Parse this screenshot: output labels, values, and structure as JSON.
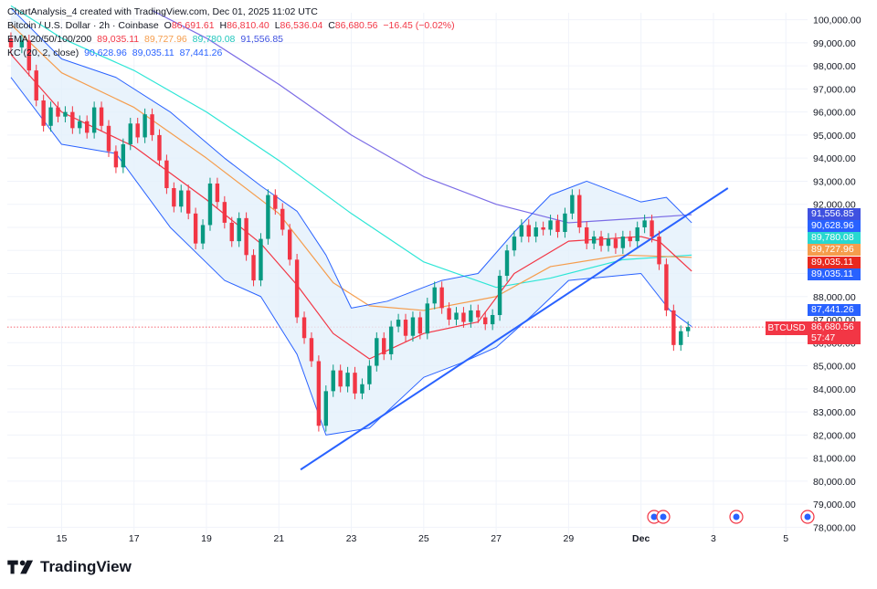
{
  "header": {
    "watermark": "ChartAnalysis_4 created with TradingView.com, Dec 01, 2025 11:02 UTC",
    "symbol_line": {
      "name": "Bitcoin / U.S. Dollar · 2h · Coinbase",
      "o_label": "O",
      "o_value": "86,691.61",
      "h_label": "H",
      "h_value": "86,810.40",
      "l_label": "L",
      "l_value": "86,536.04",
      "c_label": "C",
      "c_value": "86,680.56",
      "change": "−16.45 (−0.02%)"
    },
    "ema_line": {
      "label": "EMA 20/50/100/200",
      "values": [
        "89,035.11",
        "89,727.96",
        "89,780.08",
        "91,556.85"
      ]
    },
    "kc_line": {
      "label": "KC (20, 2, close)",
      "values": [
        "90,628.96",
        "89,035.11",
        "87,441.26"
      ]
    }
  },
  "footer": {
    "brand": "TradingView"
  },
  "colors": {
    "up": "#089981",
    "down": "#f23645",
    "ema20": "#f23645",
    "ema50": "#f59d4d",
    "ema100": "#2ee6d6",
    "ema200": "#7b6ce6",
    "kc_line": "#2962ff",
    "kc_fill": "#e3f0fb",
    "trendline": "#2962ff",
    "text": "#131722"
  },
  "price_labels": [
    {
      "value": "91,556.85",
      "color": "#3f51e0"
    },
    {
      "value": "90,628.96",
      "color": "#2962ff"
    },
    {
      "value": "89,780.08",
      "color": "#28d8d0"
    },
    {
      "value": "89,727.96",
      "color": "#f59d4d"
    },
    {
      "value": "89,035.11",
      "color": "#e8281f"
    },
    {
      "value": "89,035.11",
      "color": "#2962ff"
    },
    {
      "value": "87,441.26",
      "color": "#2962ff"
    },
    {
      "value": "86,680.56",
      "color": "#f23645"
    },
    {
      "value": "57:47",
      "color": "#f23645"
    }
  ],
  "symbol_tag": "BTCUSD",
  "chart_data": {
    "type": "candlestick",
    "title": "Bitcoin / U.S. Dollar · 2h · Coinbase",
    "x_ticks": [
      "15",
      "17",
      "19",
      "21",
      "23",
      "25",
      "27",
      "29",
      "Dec",
      "3",
      "5"
    ],
    "y_ticks": [
      78000,
      79000,
      80000,
      81000,
      82000,
      83000,
      84000,
      85000,
      86000,
      87000,
      88000,
      89000,
      90000,
      91000,
      92000,
      93000,
      94000,
      95000,
      96000,
      97000,
      98000,
      99000,
      100000
    ],
    "y_tick_labels": [
      "78,000.00",
      "79,000.00",
      "80,000.00",
      "81,000.00",
      "82,000.00",
      "83,000.00",
      "84,000.00",
      "85,000.00",
      "86,000.00",
      "87,000.00",
      "88,000.00",
      "89,000.00",
      "90,000.00",
      "91,000.00",
      "92,000.00",
      "93,000.00",
      "94,000.00",
      "95,000.00",
      "96,000.00",
      "97,000.00",
      "98,000.00",
      "99,000.00",
      "100,000.00"
    ],
    "ylim": [
      77700,
      100300
    ],
    "xlim_days": [
      13.5,
      35.6
    ],
    "candles_close": [
      {
        "day": 13.6,
        "o": 99200,
        "c": 98800
      },
      {
        "day": 13.9,
        "o": 98800,
        "c": 99100
      },
      {
        "day": 14.1,
        "o": 99100,
        "c": 97800
      },
      {
        "day": 14.3,
        "o": 97800,
        "c": 96500
      },
      {
        "day": 14.5,
        "o": 96500,
        "c": 95400
      },
      {
        "day": 14.7,
        "o": 95400,
        "c": 96200
      },
      {
        "day": 14.9,
        "o": 96200,
        "c": 95800
      },
      {
        "day": 15.1,
        "o": 95800,
        "c": 96000
      },
      {
        "day": 15.3,
        "o": 96000,
        "c": 95300
      },
      {
        "day": 15.5,
        "o": 95300,
        "c": 95600
      },
      {
        "day": 15.7,
        "o": 95600,
        "c": 95100
      },
      {
        "day": 15.9,
        "o": 95100,
        "c": 96200
      },
      {
        "day": 16.1,
        "o": 96200,
        "c": 95400
      },
      {
        "day": 16.3,
        "o": 95400,
        "c": 94300
      },
      {
        "day": 16.5,
        "o": 94300,
        "c": 93600
      },
      {
        "day": 16.7,
        "o": 93600,
        "c": 94600
      },
      {
        "day": 16.9,
        "o": 94600,
        "c": 95500
      },
      {
        "day": 17.1,
        "o": 95500,
        "c": 94900
      },
      {
        "day": 17.3,
        "o": 94900,
        "c": 95900
      },
      {
        "day": 17.5,
        "o": 95900,
        "c": 95000
      },
      {
        "day": 17.7,
        "o": 95000,
        "c": 93900
      },
      {
        "day": 17.9,
        "o": 93900,
        "c": 92700
      },
      {
        "day": 18.1,
        "o": 92700,
        "c": 91900
      },
      {
        "day": 18.3,
        "o": 91900,
        "c": 92600
      },
      {
        "day": 18.5,
        "o": 92600,
        "c": 91600
      },
      {
        "day": 18.7,
        "o": 91600,
        "c": 90300
      },
      {
        "day": 18.9,
        "o": 90300,
        "c": 91100
      },
      {
        "day": 19.1,
        "o": 91100,
        "c": 92900
      },
      {
        "day": 19.3,
        "o": 92900,
        "c": 92100
      },
      {
        "day": 19.5,
        "o": 92100,
        "c": 91200
      },
      {
        "day": 19.7,
        "o": 91200,
        "c": 90400
      },
      {
        "day": 19.9,
        "o": 90400,
        "c": 91400
      },
      {
        "day": 20.1,
        "o": 91400,
        "c": 89800
      },
      {
        "day": 20.3,
        "o": 89800,
        "c": 88700
      },
      {
        "day": 20.5,
        "o": 88700,
        "c": 90500
      },
      {
        "day": 20.7,
        "o": 90500,
        "c": 92400
      },
      {
        "day": 20.9,
        "o": 92400,
        "c": 91800
      },
      {
        "day": 21.1,
        "o": 91800,
        "c": 90900
      },
      {
        "day": 21.3,
        "o": 90900,
        "c": 89600
      },
      {
        "day": 21.5,
        "o": 89600,
        "c": 87100
      },
      {
        "day": 21.7,
        "o": 87100,
        "c": 86200
      },
      {
        "day": 21.9,
        "o": 86200,
        "c": 85200
      },
      {
        "day": 22.1,
        "o": 85200,
        "c": 82400
      },
      {
        "day": 22.3,
        "o": 82400,
        "c": 83900
      },
      {
        "day": 22.5,
        "o": 83900,
        "c": 84800
      },
      {
        "day": 22.7,
        "o": 84800,
        "c": 84100
      },
      {
        "day": 22.9,
        "o": 84100,
        "c": 84700
      },
      {
        "day": 23.1,
        "o": 84700,
        "c": 83800
      },
      {
        "day": 23.3,
        "o": 83800,
        "c": 84200
      },
      {
        "day": 23.5,
        "o": 84200,
        "c": 85000
      },
      {
        "day": 23.7,
        "o": 85000,
        "c": 86200
      },
      {
        "day": 23.9,
        "o": 86200,
        "c": 85500
      },
      {
        "day": 24.1,
        "o": 85500,
        "c": 86700
      },
      {
        "day": 24.3,
        "o": 86700,
        "c": 87000
      },
      {
        "day": 24.5,
        "o": 87000,
        "c": 86300
      },
      {
        "day": 24.7,
        "o": 86300,
        "c": 87100
      },
      {
        "day": 24.9,
        "o": 87100,
        "c": 86400
      },
      {
        "day": 25.1,
        "o": 86400,
        "c": 87700
      },
      {
        "day": 25.3,
        "o": 87700,
        "c": 88400
      },
      {
        "day": 25.5,
        "o": 88400,
        "c": 87500
      },
      {
        "day": 25.7,
        "o": 87500,
        "c": 87000
      },
      {
        "day": 25.9,
        "o": 87000,
        "c": 87300
      },
      {
        "day": 26.1,
        "o": 87300,
        "c": 86900
      },
      {
        "day": 26.3,
        "o": 86900,
        "c": 87400
      },
      {
        "day": 26.5,
        "o": 87400,
        "c": 87100
      },
      {
        "day": 26.7,
        "o": 87100,
        "c": 86800
      },
      {
        "day": 26.9,
        "o": 86800,
        "c": 87200
      },
      {
        "day": 27.1,
        "o": 87200,
        "c": 88900
      },
      {
        "day": 27.3,
        "o": 88900,
        "c": 90000
      },
      {
        "day": 27.5,
        "o": 90000,
        "c": 90600
      },
      {
        "day": 27.7,
        "o": 90600,
        "c": 91100
      },
      {
        "day": 27.9,
        "o": 91100,
        "c": 90600
      },
      {
        "day": 28.1,
        "o": 90600,
        "c": 91000
      },
      {
        "day": 28.3,
        "o": 91000,
        "c": 90900
      },
      {
        "day": 28.5,
        "o": 90900,
        "c": 91300
      },
      {
        "day": 28.7,
        "o": 91300,
        "c": 90800
      },
      {
        "day": 28.9,
        "o": 90800,
        "c": 91600
      },
      {
        "day": 29.1,
        "o": 91600,
        "c": 92400
      },
      {
        "day": 29.3,
        "o": 92400,
        "c": 91000
      },
      {
        "day": 29.5,
        "o": 91000,
        "c": 90300
      },
      {
        "day": 29.7,
        "o": 90300,
        "c": 90600
      },
      {
        "day": 29.9,
        "o": 90600,
        "c": 90200
      },
      {
        "day": 30.1,
        "o": 90200,
        "c": 90500
      },
      {
        "day": 30.3,
        "o": 90500,
        "c": 90100
      },
      {
        "day": 30.5,
        "o": 90100,
        "c": 90600
      },
      {
        "day": 30.7,
        "o": 90600,
        "c": 90400
      },
      {
        "day": 30.9,
        "o": 90400,
        "c": 91000
      },
      {
        "day": 31.1,
        "o": 91000,
        "c": 91300
      },
      {
        "day": 31.3,
        "o": 91300,
        "c": 90600
      },
      {
        "day": 31.5,
        "o": 90600,
        "c": 89400
      },
      {
        "day": 31.7,
        "o": 89400,
        "c": 87400
      },
      {
        "day": 31.9,
        "o": 87400,
        "c": 85900
      },
      {
        "day": 32.1,
        "o": 85900,
        "c": 86500
      },
      {
        "day": 32.3,
        "o": 86500,
        "c": 86680
      }
    ],
    "trendline": {
      "from": {
        "day": 21.6,
        "price": 80500
      },
      "to": {
        "day": 33.4,
        "price": 92700
      }
    },
    "ema20": [
      [
        13.6,
        98500
      ],
      [
        15,
        96000
      ],
      [
        17,
        94500
      ],
      [
        19,
        92200
      ],
      [
        20.5,
        90300
      ],
      [
        21.5,
        88500
      ],
      [
        22.5,
        86400
      ],
      [
        23.5,
        85300
      ],
      [
        25,
        86400
      ],
      [
        26.5,
        86900
      ],
      [
        27.5,
        89000
      ],
      [
        29,
        90400
      ],
      [
        31,
        90600
      ],
      [
        31.5,
        90400
      ],
      [
        32.4,
        89100
      ]
    ],
    "ema50": [
      [
        13.6,
        99800
      ],
      [
        15,
        97700
      ],
      [
        17,
        96200
      ],
      [
        19,
        94000
      ],
      [
        21,
        91600
      ],
      [
        22.5,
        88600
      ],
      [
        23.5,
        87600
      ],
      [
        25,
        87400
      ],
      [
        27,
        88000
      ],
      [
        28.5,
        89300
      ],
      [
        30.5,
        89800
      ],
      [
        32.4,
        89700
      ]
    ],
    "ema100": [
      [
        13.6,
        100600
      ],
      [
        15,
        99200
      ],
      [
        17,
        97800
      ],
      [
        19,
        96000
      ],
      [
        21,
        93900
      ],
      [
        23,
        91600
      ],
      [
        25,
        89500
      ],
      [
        27,
        88400
      ],
      [
        28.5,
        88800
      ],
      [
        30.5,
        89600
      ],
      [
        32.4,
        89800
      ]
    ],
    "ema200": [
      [
        17.5,
        100400
      ],
      [
        19,
        99200
      ],
      [
        21,
        97200
      ],
      [
        23,
        95000
      ],
      [
        25,
        93200
      ],
      [
        27,
        92000
      ],
      [
        29,
        91200
      ],
      [
        31,
        91400
      ],
      [
        32.4,
        91550
      ]
    ],
    "kc_upper": [
      [
        13.6,
        100500
      ],
      [
        15,
        98300
      ],
      [
        16.5,
        97500
      ],
      [
        18,
        96000
      ],
      [
        19.5,
        94000
      ],
      [
        20.5,
        92800
      ],
      [
        21.5,
        91700
      ],
      [
        22.3,
        89800
      ],
      [
        23,
        87500
      ],
      [
        24,
        87800
      ],
      [
        25.5,
        88700
      ],
      [
        26.5,
        89000
      ],
      [
        27.5,
        90800
      ],
      [
        28.5,
        92400
      ],
      [
        29.5,
        93000
      ],
      [
        31,
        92100
      ],
      [
        31.7,
        92300
      ],
      [
        32.4,
        91200
      ]
    ],
    "kc_lower": [
      [
        13.6,
        97500
      ],
      [
        15,
        94600
      ],
      [
        16.5,
        94200
      ],
      [
        18,
        91000
      ],
      [
        19.5,
        88700
      ],
      [
        20.5,
        88000
      ],
      [
        21.5,
        85500
      ],
      [
        22.3,
        82000
      ],
      [
        23.5,
        82300
      ],
      [
        25,
        84500
      ],
      [
        26,
        85100
      ],
      [
        27,
        85800
      ],
      [
        28,
        87200
      ],
      [
        29,
        88700
      ],
      [
        31,
        89000
      ],
      [
        31.8,
        87400
      ],
      [
        32.4,
        86700
      ]
    ]
  }
}
